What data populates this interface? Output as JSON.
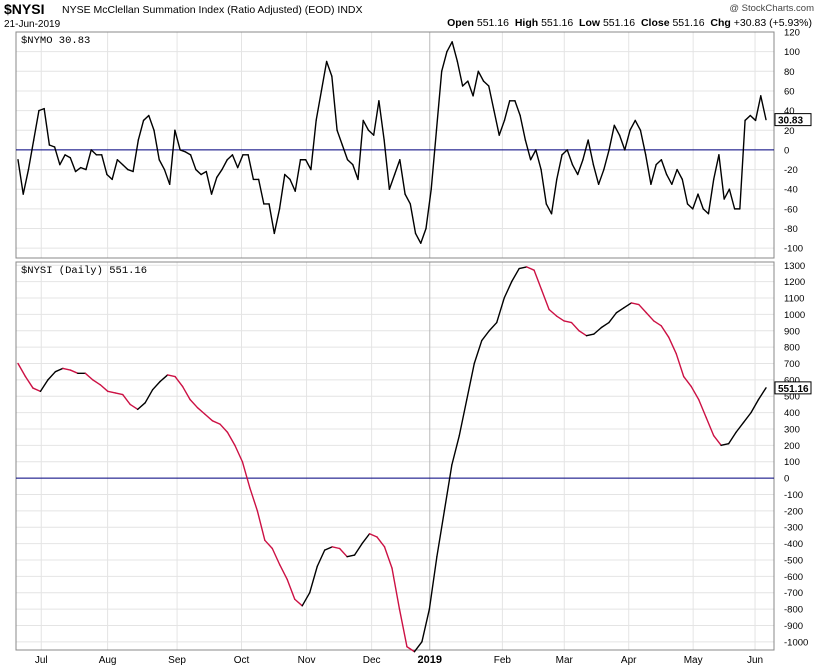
{
  "header": {
    "symbol": "$NYSI",
    "description": "NYSE McClellan Summation Index (Ratio Adjusted) (EOD)  INDX",
    "date": "21-Jun-2019",
    "credit": "@ StockCharts.com",
    "open_label": "Open",
    "open_value": "551.16",
    "high_label": "High",
    "high_value": "551.16",
    "low_label": "Low",
    "low_value": "551.16",
    "close_label": "Close",
    "close_value": "551.16",
    "chg_label": "Chg",
    "chg_value": "+30.83 (+5.93%)"
  },
  "colors": {
    "line": "#000000",
    "falling": "#cc1144",
    "zero_line": "#000080",
    "grid": "#e4e4e4",
    "frame": "#888888"
  },
  "chart_data": [
    {
      "type": "line",
      "panel_label": "$NYMO 30.83",
      "last_value_tag": "30.83",
      "ylim": [
        -110,
        120
      ],
      "yticks": [
        120,
        100,
        80,
        60,
        40,
        20,
        0,
        -20,
        -40,
        -60,
        -80,
        -100
      ],
      "reference_line": 0,
      "values": [
        -10,
        -45,
        -20,
        10,
        40,
        42,
        5,
        3,
        -15,
        -5,
        -8,
        -22,
        -18,
        -20,
        0,
        -5,
        -5,
        -25,
        -30,
        -10,
        -15,
        -20,
        -22,
        10,
        30,
        35,
        20,
        -10,
        -20,
        -35,
        20,
        0,
        -2,
        -5,
        -20,
        -25,
        -22,
        -45,
        -28,
        -20,
        -10,
        -5,
        -18,
        -5,
        -5,
        -30,
        -30,
        -55,
        -55,
        -85,
        -60,
        -25,
        -30,
        -42,
        -10,
        -10,
        -20,
        30,
        60,
        90,
        75,
        20,
        5,
        -10,
        -15,
        -30,
        30,
        20,
        15,
        50,
        10,
        -40,
        -25,
        -10,
        -45,
        -55,
        -85,
        -95,
        -80,
        -40,
        20,
        80,
        100,
        110,
        90,
        65,
        70,
        55,
        80,
        70,
        65,
        40,
        15,
        30,
        50,
        50,
        35,
        10,
        -10,
        0,
        -20,
        -55,
        -65,
        -30,
        -5,
        0,
        -15,
        -25,
        -10,
        10,
        -15,
        -35,
        -20,
        0,
        25,
        15,
        0,
        20,
        30,
        20,
        -5,
        -35,
        -15,
        -10,
        -25,
        -35,
        -20,
        -30,
        -55,
        -60,
        -45,
        -60,
        -65,
        -30,
        -5,
        -50,
        -40,
        -60,
        -60,
        30,
        35,
        30,
        55,
        30.83
      ]
    },
    {
      "type": "line",
      "panel_label": "$NYSI (Daily) 551.16",
      "last_value_tag": "551.16",
      "ylim": [
        -1050,
        1320
      ],
      "yticks": [
        1300,
        1200,
        1100,
        1000,
        900,
        800,
        700,
        600,
        500,
        400,
        300,
        200,
        100,
        0,
        -100,
        -200,
        -300,
        -400,
        -500,
        -600,
        -700,
        -800,
        -900,
        -1000
      ],
      "reference_line": 0,
      "values": [
        700,
        620,
        550,
        530,
        600,
        650,
        670,
        660,
        640,
        640,
        600,
        570,
        530,
        520,
        510,
        450,
        420,
        460,
        540,
        590,
        630,
        620,
        560,
        480,
        430,
        390,
        350,
        330,
        280,
        200,
        100,
        -60,
        -200,
        -380,
        -430,
        -530,
        -620,
        -740,
        -780,
        -700,
        -540,
        -440,
        -420,
        -430,
        -480,
        -470,
        -400,
        -340,
        -360,
        -420,
        -550,
        -800,
        -1030,
        -1060,
        -1000,
        -800,
        -480,
        -200,
        80,
        260,
        480,
        700,
        840,
        900,
        950,
        1100,
        1200,
        1280,
        1290,
        1270,
        1150,
        1030,
        990,
        960,
        950,
        900,
        870,
        880,
        920,
        950,
        1010,
        1040,
        1070,
        1060,
        1010,
        960,
        930,
        860,
        760,
        620,
        560,
        480,
        370,
        260,
        200,
        210,
        280,
        340,
        400,
        480,
        551.16
      ]
    }
  ],
  "x_axis": {
    "labels": [
      {
        "text": "Jul",
        "pos": 0.04
      },
      {
        "text": "Aug",
        "pos": 0.145
      },
      {
        "text": "Sep",
        "pos": 0.255
      },
      {
        "text": "Oct",
        "pos": 0.357
      },
      {
        "text": "Nov",
        "pos": 0.46
      },
      {
        "text": "Dec",
        "pos": 0.563
      },
      {
        "text": "2019",
        "pos": 0.655,
        "bold": true
      },
      {
        "text": "Feb",
        "pos": 0.77
      },
      {
        "text": "Mar",
        "pos": 0.868
      },
      {
        "text": "Apr",
        "pos": 0.97
      },
      {
        "text": "May",
        "pos": 1.072
      },
      {
        "text": "Jun",
        "pos": 1.17
      }
    ]
  }
}
